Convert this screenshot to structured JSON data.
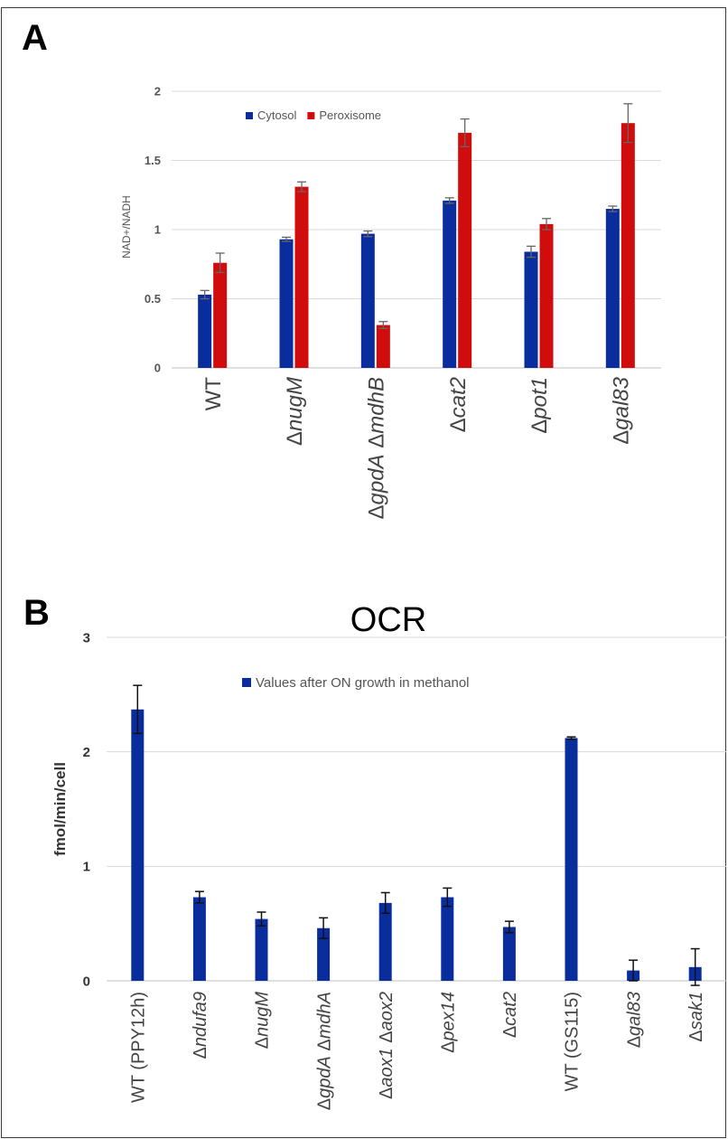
{
  "panels": {
    "a_label": "A",
    "b_label": "B"
  },
  "chart_data": [
    {
      "type": "bar",
      "title": "",
      "ylabel": "NAD+/NADH",
      "ylim": [
        0,
        2
      ],
      "yticks": [
        0,
        0.5,
        1,
        1.5,
        2
      ],
      "ytick_labels": [
        "0",
        "0.5",
        "1",
        "1.5",
        "2"
      ],
      "grid": true,
      "legend_position": "top-left",
      "categories": [
        {
          "prefix": "",
          "parts": [
            {
              "t": "WT",
              "italic": false
            }
          ]
        },
        {
          "prefix": "Δ",
          "parts": [
            {
              "t": "nugM",
              "italic": true
            }
          ]
        },
        {
          "prefix": "Δ",
          "parts": [
            {
              "t": "gpdA",
              "italic": true
            },
            {
              "t": " Δ",
              "italic": false
            },
            {
              "t": "mdhB",
              "italic": true
            }
          ]
        },
        {
          "prefix": "Δ",
          "parts": [
            {
              "t": "cat2",
              "italic": true
            }
          ]
        },
        {
          "prefix": "Δ",
          "parts": [
            {
              "t": "pot1",
              "italic": true
            }
          ]
        },
        {
          "prefix": "Δ",
          "parts": [
            {
              "t": "gal83",
              "italic": true
            }
          ]
        }
      ],
      "series": [
        {
          "name": "Cytosol",
          "color": "#0a2d9e",
          "values": [
            0.53,
            0.93,
            0.97,
            1.21,
            0.84,
            1.15
          ],
          "errors": [
            0.03,
            0.015,
            0.02,
            0.02,
            0.04,
            0.02
          ]
        },
        {
          "name": "Peroxisome",
          "color": "#d00c0c",
          "values": [
            0.76,
            1.31,
            0.31,
            1.7,
            1.04,
            1.77
          ],
          "errors": [
            0.07,
            0.035,
            0.025,
            0.1,
            0.04,
            0.14
          ]
        }
      ]
    },
    {
      "type": "bar",
      "title": "OCR",
      "ylabel": "fmol/min/cell",
      "ylim": [
        0,
        3
      ],
      "yticks": [
        0,
        1,
        2,
        3
      ],
      "ytick_labels": [
        "0",
        "1",
        "2",
        "3"
      ],
      "grid": true,
      "legend_position": "top-center",
      "categories": [
        {
          "prefix": "",
          "parts": [
            {
              "t": "WT (PPY12h)",
              "italic": false
            }
          ]
        },
        {
          "prefix": "Δ",
          "parts": [
            {
              "t": "ndufa9",
              "italic": true
            }
          ]
        },
        {
          "prefix": "Δ",
          "parts": [
            {
              "t": "nugM",
              "italic": true
            }
          ]
        },
        {
          "prefix": "Δ",
          "parts": [
            {
              "t": "gpdA",
              "italic": true
            },
            {
              "t": " Δ",
              "italic": false
            },
            {
              "t": "mdhA",
              "italic": true
            }
          ]
        },
        {
          "prefix": "Δ",
          "parts": [
            {
              "t": "aox1",
              "italic": true
            },
            {
              "t": " Δ",
              "italic": false
            },
            {
              "t": "aox2",
              "italic": true
            }
          ]
        },
        {
          "prefix": "Δ",
          "parts": [
            {
              "t": "pex14",
              "italic": true
            }
          ]
        },
        {
          "prefix": "Δ",
          "parts": [
            {
              "t": "cat2",
              "italic": true
            }
          ]
        },
        {
          "prefix": "",
          "parts": [
            {
              "t": "WT (GS115)",
              "italic": false
            }
          ]
        },
        {
          "prefix": "Δ",
          "parts": [
            {
              "t": "gal83",
              "italic": true
            }
          ]
        },
        {
          "prefix": "Δ",
          "parts": [
            {
              "t": "sak1",
              "italic": true
            }
          ]
        }
      ],
      "series": [
        {
          "name": "Values after ON growth in methanol",
          "color": "#0a2d9e",
          "values": [
            2.37,
            0.73,
            0.54,
            0.46,
            0.68,
            0.73,
            0.47,
            2.12,
            0.09,
            0.12
          ],
          "errors": [
            0.21,
            0.05,
            0.06,
            0.09,
            0.09,
            0.08,
            0.05,
            0.01,
            0.09,
            0.16
          ]
        }
      ]
    }
  ]
}
